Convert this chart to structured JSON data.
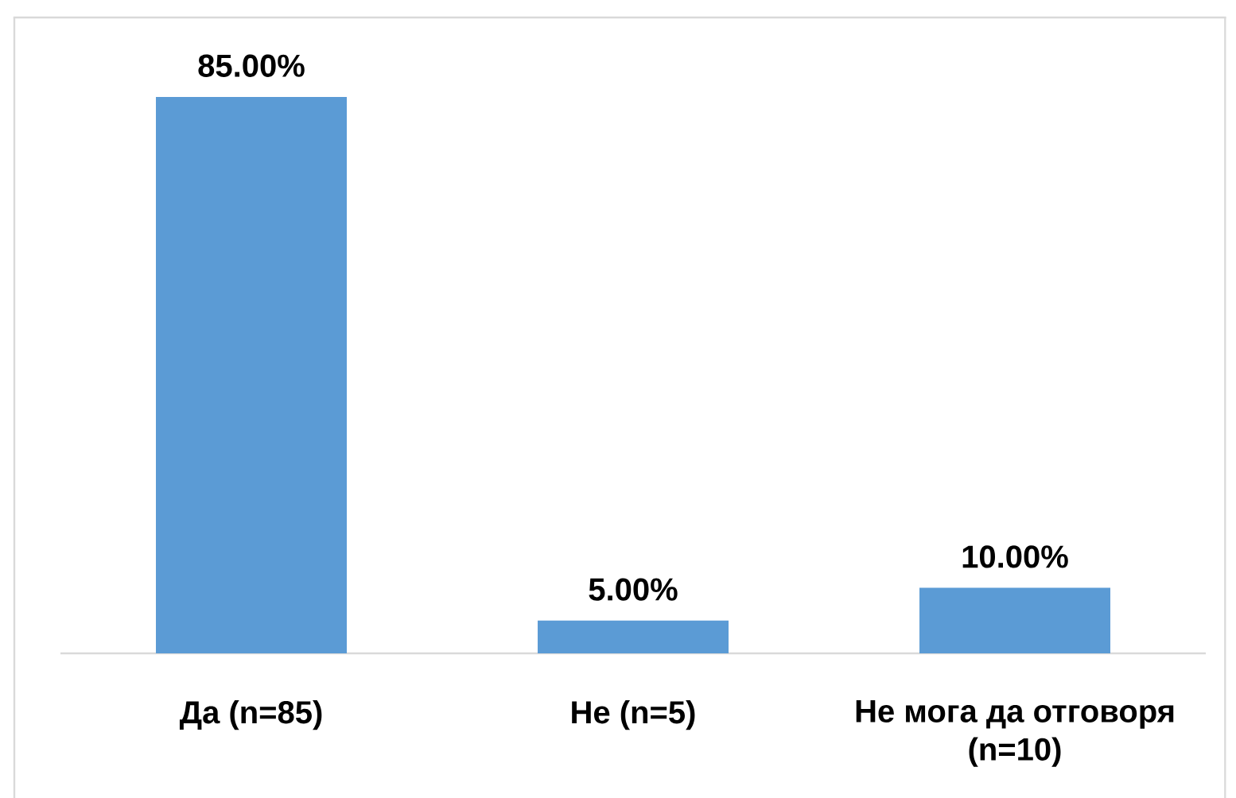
{
  "chart_data": {
    "type": "bar",
    "categories": [
      "Да (n=85)",
      "Не (n=5)",
      "Не мога да отговоря (n=10)"
    ],
    "values": [
      85,
      5,
      10
    ],
    "value_labels": [
      "85.00%",
      "5.00%",
      "10.00%"
    ],
    "color": "#5b9bd5",
    "tick_labels": "x"
  }
}
